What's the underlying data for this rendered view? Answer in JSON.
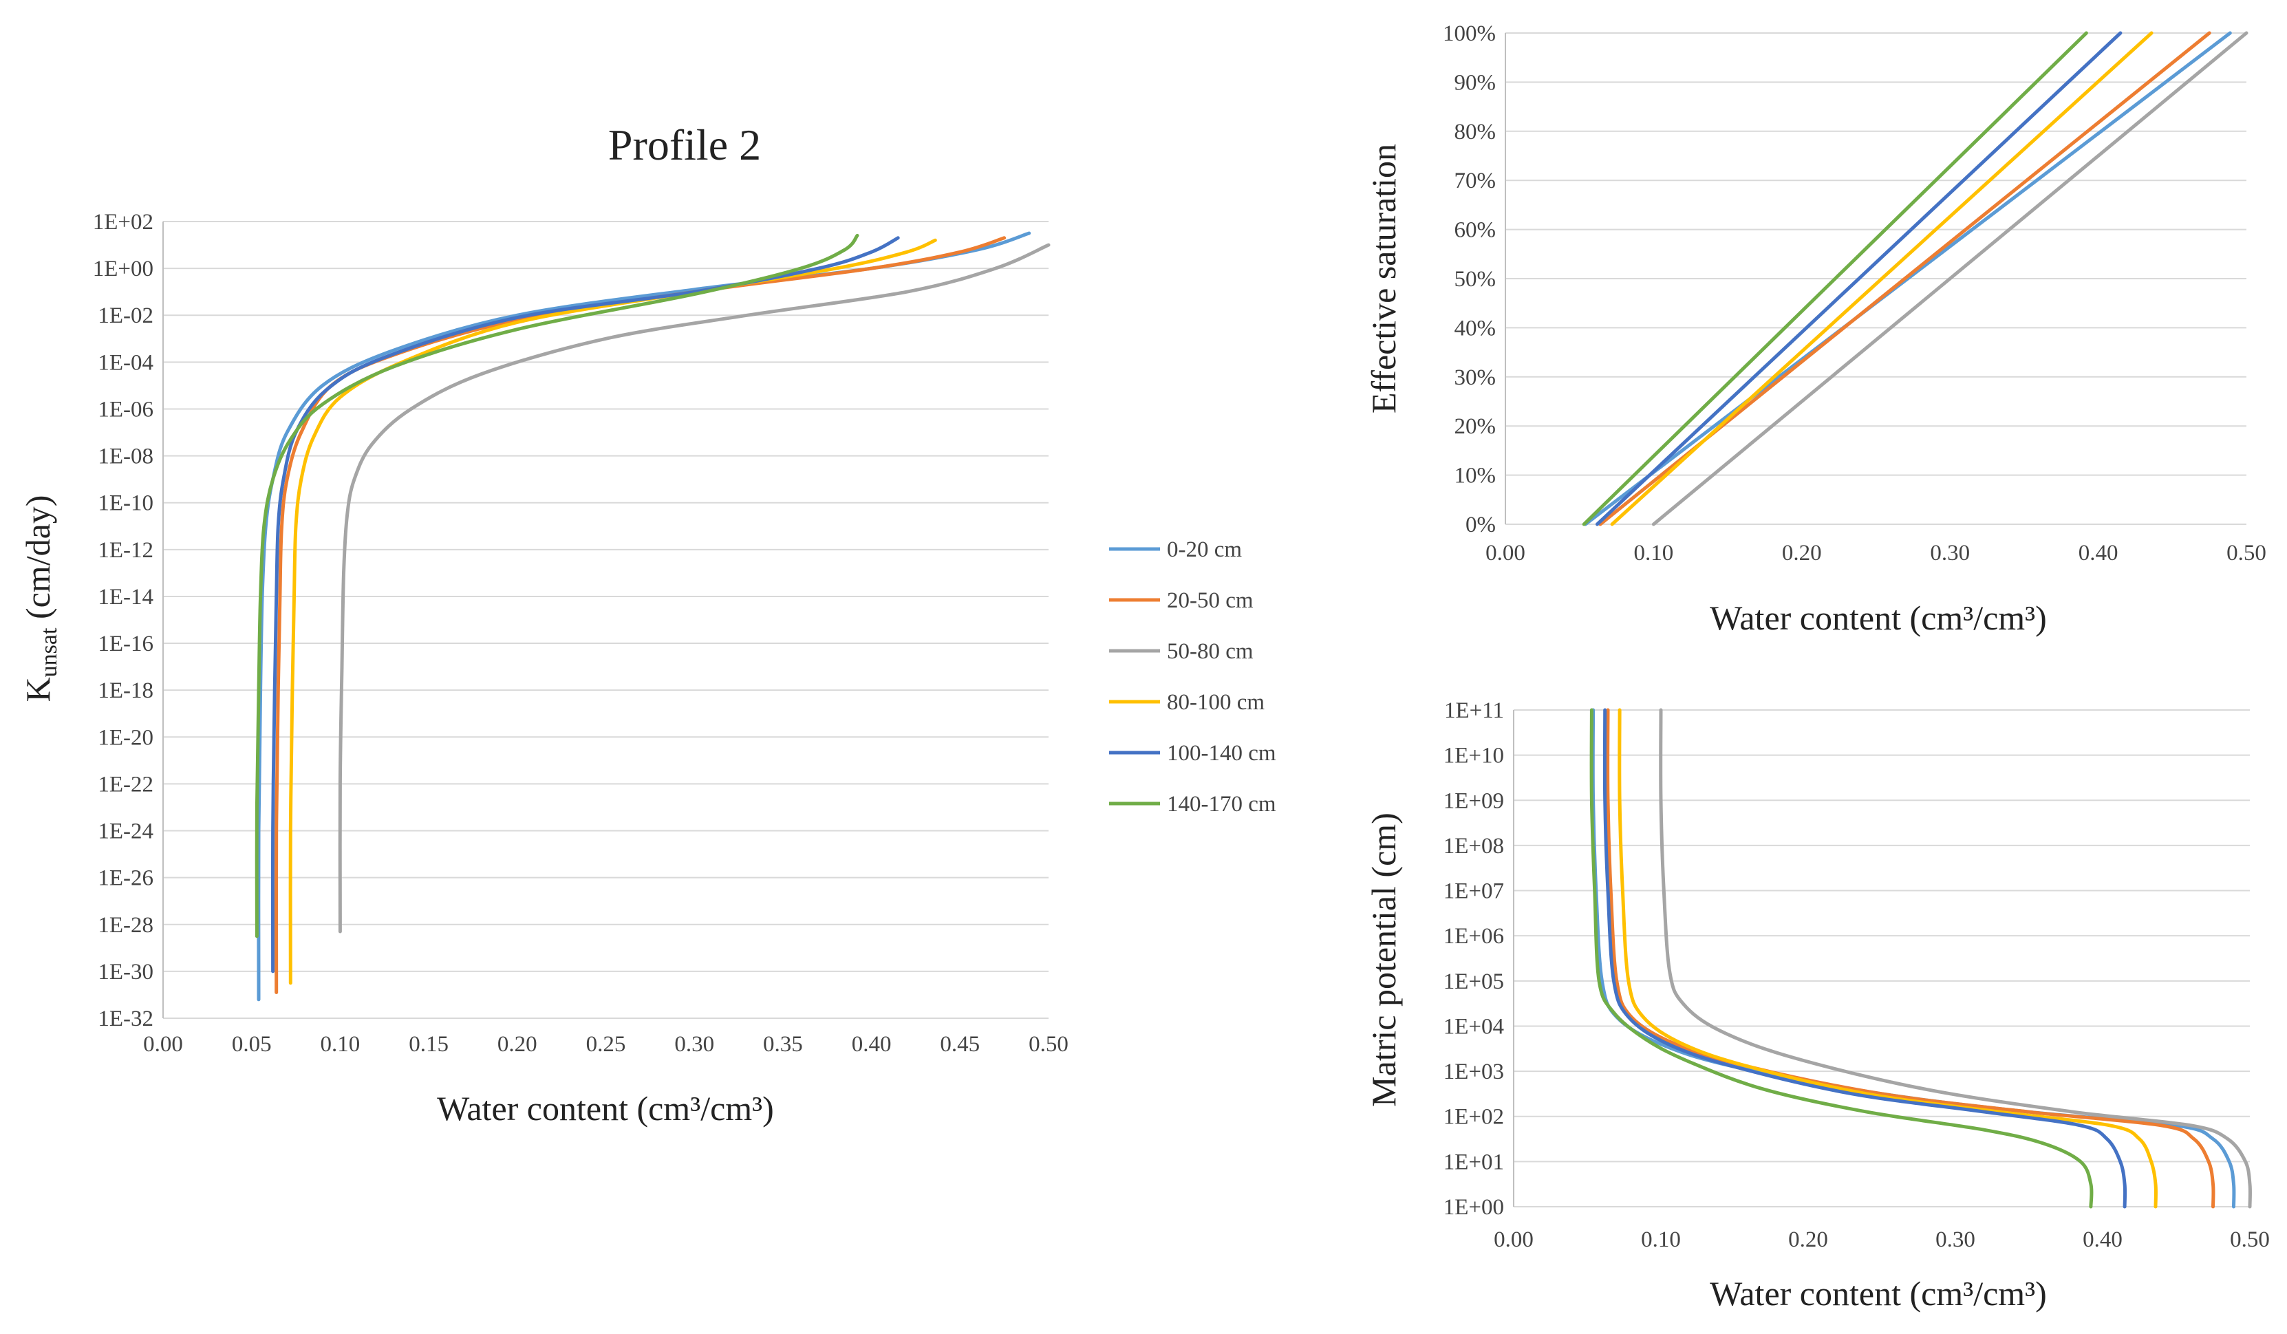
{
  "chart_data": [
    {
      "id": "k",
      "type": "line",
      "title": "Profile 2",
      "xlabel": "Water content",
      "xlabel_unit": "(cm³/cm³)",
      "ylabel": "Kunsat (cm/day)",
      "ylabel_main": "K",
      "ylabel_sub": "unsat",
      "ylabel_unit": " (cm/day)",
      "yscale": "log10",
      "xlim": [
        0,
        0.5
      ],
      "ylim_log": [
        -32,
        2
      ],
      "xticks": [
        "0.00",
        "0.05",
        "0.10",
        "0.15",
        "0.20",
        "0.25",
        "0.30",
        "0.35",
        "0.40",
        "0.45",
        "0.50"
      ],
      "yticks": [
        "1E-32",
        "1E-30",
        "1E-28",
        "1E-26",
        "1E-24",
        "1E-22",
        "1E-20",
        "1E-18",
        "1E-16",
        "1E-14",
        "1E-12",
        "1E-10",
        "1E-08",
        "1E-06",
        "1E-04",
        "1E-02",
        "1E+00",
        "1E+02"
      ],
      "series": [
        {
          "name": "0-20 cm",
          "color": "#5b9bd5",
          "x": [
            0.054,
            0.054,
            0.055,
            0.056,
            0.058,
            0.062,
            0.07,
            0.09,
            0.13,
            0.2,
            0.3,
            0.4,
            0.46,
            0.489
          ],
          "y": [
            -31.2,
            -24,
            -18,
            -14,
            -11,
            -9,
            -7,
            -5,
            -3.5,
            -2,
            -0.9,
            0,
            0.8,
            1.5
          ]
        },
        {
          "name": "20-50 cm",
          "color": "#ed7d31",
          "x": [
            0.064,
            0.064,
            0.065,
            0.066,
            0.067,
            0.07,
            0.078,
            0.095,
            0.13,
            0.2,
            0.3,
            0.4,
            0.45,
            0.475
          ],
          "y": [
            -30.9,
            -24,
            -18,
            -14,
            -11,
            -9,
            -7,
            -5,
            -3.7,
            -2.2,
            -1,
            0,
            0.7,
            1.3
          ]
        },
        {
          "name": "50-80 cm",
          "color": "#a5a5a5",
          "x": [
            0.1,
            0.1,
            0.101,
            0.102,
            0.104,
            0.108,
            0.118,
            0.14,
            0.18,
            0.25,
            0.33,
            0.42,
            0.47,
            0.5
          ],
          "y": [
            -28.3,
            -22,
            -17,
            -13,
            -10.5,
            -9,
            -7.5,
            -6,
            -4.5,
            -3,
            -2,
            -1,
            0,
            1
          ]
        },
        {
          "name": "80-100 cm",
          "color": "#ffc000",
          "x": [
            0.072,
            0.072,
            0.073,
            0.074,
            0.075,
            0.078,
            0.085,
            0.1,
            0.135,
            0.2,
            0.3,
            0.38,
            0.42,
            0.436
          ],
          "y": [
            -30.5,
            -24,
            -18,
            -14,
            -11,
            -9,
            -7.2,
            -5.5,
            -4,
            -2.3,
            -1,
            0,
            0.7,
            1.2
          ]
        },
        {
          "name": "100-140 cm",
          "color": "#4472c4",
          "x": [
            0.062,
            0.062,
            0.063,
            0.064,
            0.065,
            0.068,
            0.075,
            0.092,
            0.125,
            0.2,
            0.3,
            0.37,
            0.4,
            0.415
          ],
          "y": [
            -30,
            -24,
            -18,
            -14,
            -11,
            -9,
            -7,
            -5.2,
            -3.8,
            -2.1,
            -1,
            0,
            0.7,
            1.3
          ]
        },
        {
          "name": "140-170 cm",
          "color": "#70ad47",
          "x": [
            0.053,
            0.053,
            0.054,
            0.055,
            0.057,
            0.062,
            0.072,
            0.09,
            0.13,
            0.2,
            0.3,
            0.36,
            0.385,
            0.392
          ],
          "y": [
            -28.5,
            -23,
            -18,
            -14,
            -11,
            -9,
            -7.3,
            -5.8,
            -4.2,
            -2.6,
            -1.1,
            0,
            0.8,
            1.4
          ]
        }
      ]
    },
    {
      "id": "se",
      "type": "line",
      "xlabel": "Water content",
      "xlabel_unit": "(cm³/cm³)",
      "ylabel": "Effective saturation",
      "xlim": [
        0,
        0.5
      ],
      "ylim": [
        0,
        100
      ],
      "xticks": [
        "0.00",
        "0.10",
        "0.20",
        "0.30",
        "0.40",
        "0.50"
      ],
      "yticks": [
        "0%",
        "10%",
        "20%",
        "30%",
        "40%",
        "50%",
        "60%",
        "70%",
        "80%",
        "90%",
        "100%"
      ],
      "series": [
        {
          "name": "0-20 cm",
          "color": "#5b9bd5",
          "x": [
            0.054,
            0.489
          ],
          "y": [
            0,
            100
          ]
        },
        {
          "name": "20-50 cm",
          "color": "#ed7d31",
          "x": [
            0.064,
            0.475
          ],
          "y": [
            0,
            100
          ]
        },
        {
          "name": "50-80 cm",
          "color": "#a5a5a5",
          "x": [
            0.1,
            0.5
          ],
          "y": [
            0,
            100
          ]
        },
        {
          "name": "80-100 cm",
          "color": "#ffc000",
          "x": [
            0.072,
            0.436
          ],
          "y": [
            0,
            100
          ]
        },
        {
          "name": "100-140 cm",
          "color": "#4472c4",
          "x": [
            0.062,
            0.415
          ],
          "y": [
            0,
            100
          ]
        },
        {
          "name": "140-170 cm",
          "color": "#70ad47",
          "x": [
            0.053,
            0.392
          ],
          "y": [
            0,
            100
          ]
        }
      ]
    },
    {
      "id": "mp",
      "type": "line",
      "xlabel": "Water content",
      "xlabel_unit": "(cm³/cm³)",
      "ylabel": "Matric potential (cm)",
      "yscale": "log10",
      "xlim": [
        0,
        0.5
      ],
      "ylim_log": [
        0,
        11
      ],
      "xticks": [
        "0.00",
        "0.10",
        "0.20",
        "0.30",
        "0.40",
        "0.50"
      ],
      "yticks": [
        "1E+00",
        "1E+01",
        "1E+02",
        "1E+03",
        "1E+04",
        "1E+05",
        "1E+06",
        "1E+07",
        "1E+08",
        "1E+09",
        "1E+10",
        "1E+11"
      ],
      "series": [
        {
          "name": "0-20 cm",
          "color": "#5b9bd5",
          "x": [
            0.489,
            0.489,
            0.486,
            0.475,
            0.45,
            0.35,
            0.25,
            0.15,
            0.1,
            0.07,
            0.06,
            0.056,
            0.054,
            0.054
          ],
          "y": [
            0,
            0.5,
            1,
            1.5,
            1.8,
            2.1,
            2.5,
            3.1,
            3.6,
            4.2,
            5,
            7,
            9,
            11
          ]
        },
        {
          "name": "20-50 cm",
          "color": "#ed7d31",
          "x": [
            0.475,
            0.475,
            0.472,
            0.462,
            0.44,
            0.35,
            0.25,
            0.16,
            0.11,
            0.08,
            0.07,
            0.066,
            0.064,
            0.064
          ],
          "y": [
            0,
            0.5,
            1,
            1.5,
            1.8,
            2.1,
            2.5,
            3.1,
            3.6,
            4.2,
            5,
            7,
            9,
            11
          ]
        },
        {
          "name": "50-80 cm",
          "color": "#a5a5a5",
          "x": [
            0.5,
            0.5,
            0.497,
            0.485,
            0.46,
            0.38,
            0.28,
            0.19,
            0.14,
            0.115,
            0.106,
            0.102,
            0.1,
            0.1
          ],
          "y": [
            0,
            0.5,
            1,
            1.5,
            1.8,
            2.1,
            2.6,
            3.3,
            3.9,
            4.5,
            5.2,
            7,
            9,
            11
          ]
        },
        {
          "name": "80-100 cm",
          "color": "#ffc000",
          "x": [
            0.436,
            0.436,
            0.433,
            0.425,
            0.405,
            0.33,
            0.24,
            0.16,
            0.115,
            0.088,
            0.078,
            0.074,
            0.072,
            0.072
          ],
          "y": [
            0,
            0.5,
            1,
            1.5,
            1.8,
            2.1,
            2.5,
            3.1,
            3.6,
            4.2,
            5,
            7,
            9,
            11
          ]
        },
        {
          "name": "100-140 cm",
          "color": "#4472c4",
          "x": [
            0.415,
            0.415,
            0.412,
            0.403,
            0.385,
            0.32,
            0.23,
            0.15,
            0.105,
            0.078,
            0.068,
            0.064,
            0.062,
            0.062
          ],
          "y": [
            0,
            0.5,
            1,
            1.5,
            1.8,
            2.1,
            2.5,
            3.1,
            3.6,
            4.2,
            5,
            7,
            9,
            11
          ]
        },
        {
          "name": "140-170 cm",
          "color": "#70ad47",
          "x": [
            0.392,
            0.392,
            0.385,
            0.36,
            0.32,
            0.24,
            0.17,
            0.12,
            0.09,
            0.068,
            0.058,
            0.055,
            0.053,
            0.053
          ],
          "y": [
            0,
            0.5,
            1,
            1.4,
            1.7,
            2.1,
            2.6,
            3.2,
            3.7,
            4.3,
            5,
            7,
            9,
            11
          ]
        }
      ]
    }
  ],
  "legend": {
    "items": [
      {
        "label": "0-20 cm",
        "color": "#5b9bd5"
      },
      {
        "label": "20-50 cm",
        "color": "#ed7d31"
      },
      {
        "label": "50-80 cm",
        "color": "#a5a5a5"
      },
      {
        "label": "80-100 cm",
        "color": "#ffc000"
      },
      {
        "label": "100-140 cm",
        "color": "#4472c4"
      },
      {
        "label": "140-170 cm",
        "color": "#70ad47"
      }
    ]
  }
}
